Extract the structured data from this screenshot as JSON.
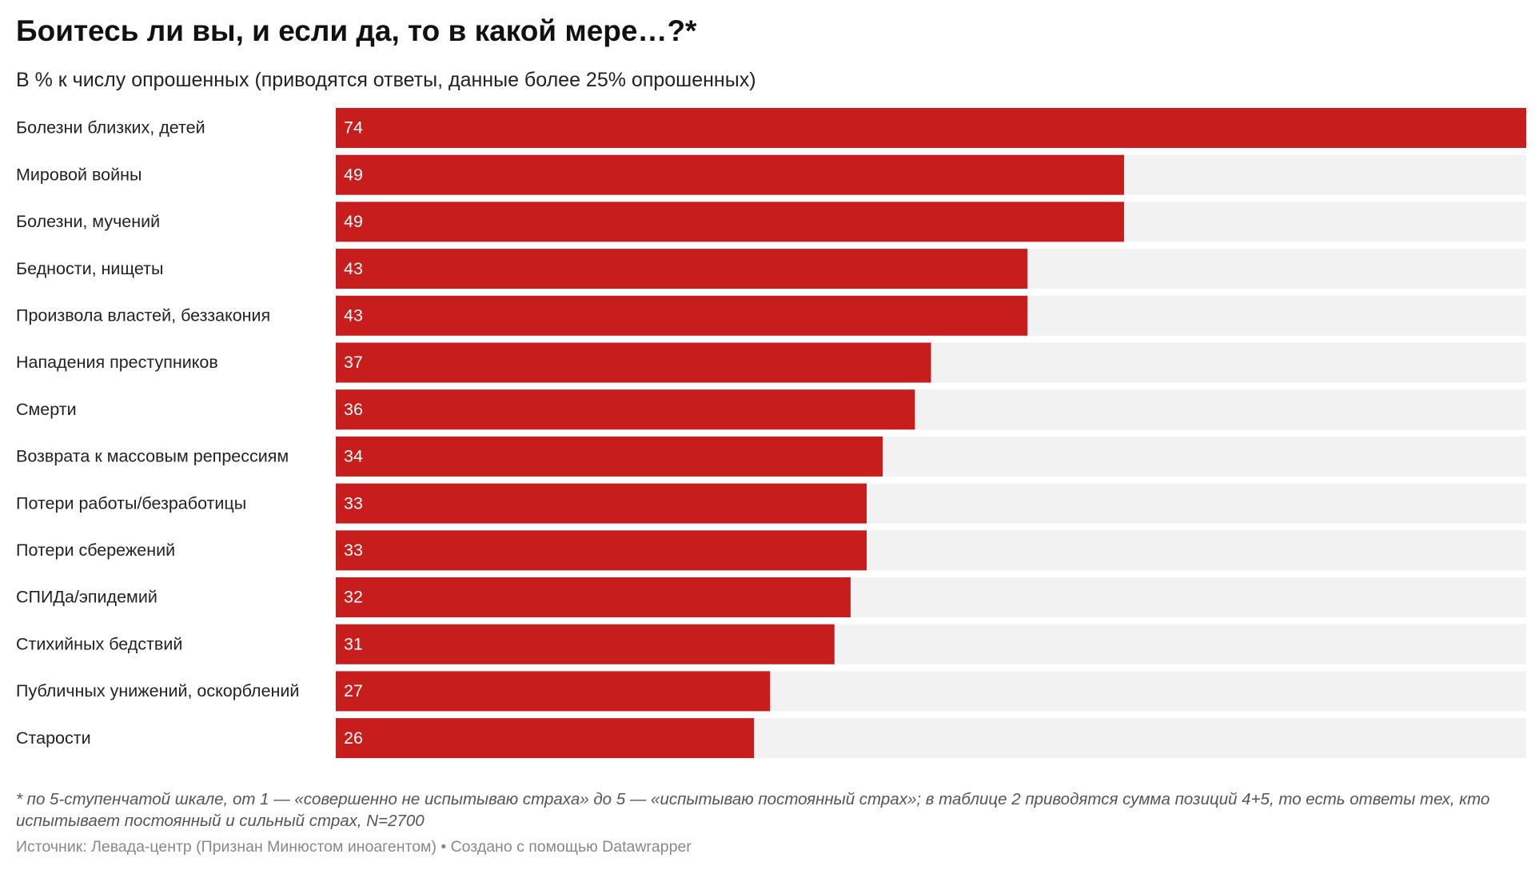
{
  "chart_data": {
    "type": "bar",
    "orientation": "horizontal",
    "title": "Боитесь ли вы, и если да, то в какой мере…?*",
    "subtitle": "В % к числу опрошенных (приводятся ответы, данные более 25% опрошенных)",
    "categories": [
      "Болезни близких, детей",
      "Мировой войны",
      "Болезни, мучений",
      "Бедности, нищеты",
      "Произвола властей, беззакония",
      "Нападения преступников",
      "Смерти",
      "Возврата к массовым репрессиям",
      "Потери работы/безработицы",
      "Потери сбережений",
      "СПИДа/эпидемий",
      "Стихийных бедствий",
      "Публичных унижений, оскорблений",
      "Старости"
    ],
    "values": [
      74,
      49,
      49,
      43,
      43,
      37,
      36,
      34,
      33,
      33,
      32,
      31,
      27,
      26
    ],
    "color": "#c71e1d",
    "xlim": [
      0,
      74
    ],
    "note": "* по 5-ступенчатой шкале, от 1 — «совершенно не испытываю страха» до 5 — «испытываю постоянный страх»; в таблице 2 приводятся сумма позиций 4+5, то есть ответы тех, кто испытывает постоянный и сильный страх, N=2700",
    "source": "Источник: Левада-центр (Признан Минюстом иноагентом) • Создано с помощью Datawrapper"
  }
}
